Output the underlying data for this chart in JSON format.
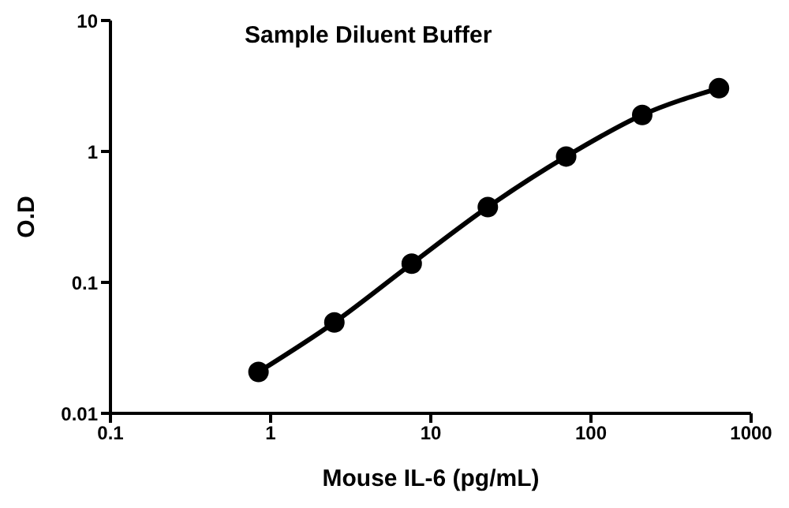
{
  "chart_data": {
    "type": "line",
    "title": "Sample Diluent Buffer",
    "xlabel": "Mouse IL-6 (pg/mL)",
    "ylabel": "O.D",
    "x": [
      0.84,
      2.5,
      7.6,
      22.7,
      70,
      209,
      630
    ],
    "series": [
      {
        "color": "#000000",
        "values": [
          0.0207,
          0.0495,
          0.139,
          0.376,
          0.915,
          1.9,
          3.04
        ]
      }
    ],
    "log": "xy",
    "xlim": [
      0.1,
      1000
    ],
    "xticks": [
      0.1,
      1,
      10,
      100,
      1000
    ],
    "ylim": [
      0.01,
      10
    ],
    "yticks": [
      0.01,
      0.1,
      1,
      10
    ],
    "marker": "circle",
    "line_style": "solid",
    "grid": false,
    "legend": false
  }
}
